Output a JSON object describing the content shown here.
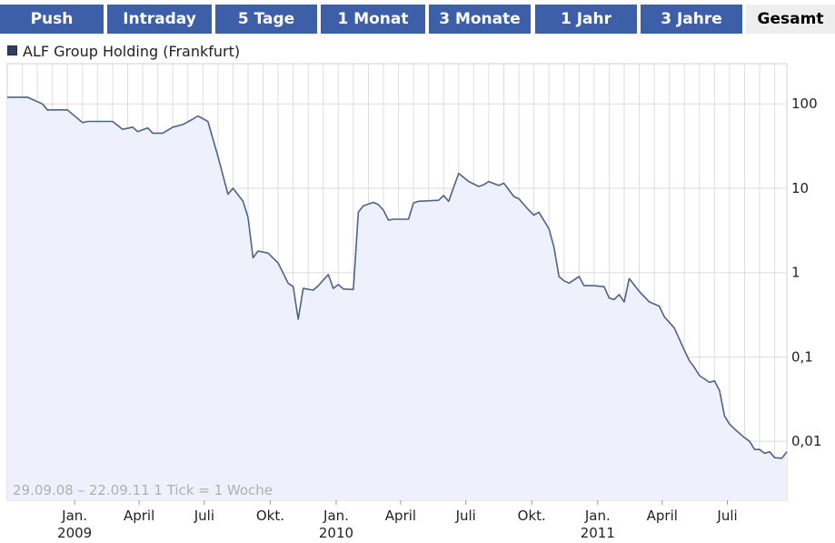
{
  "tabs": [
    {
      "label": "Push"
    },
    {
      "label": "Intraday"
    },
    {
      "label": "5 Tage"
    },
    {
      "label": "1 Monat"
    },
    {
      "label": "3 Monate"
    },
    {
      "label": "1 Jahr"
    },
    {
      "label": "3 Jahre"
    },
    {
      "label": "Gesamt",
      "active": true
    }
  ],
  "colors": {
    "tab_bg": "#3d5fa8",
    "active_tab_bg": "#eeeeee",
    "line": "#4f6289",
    "fill": "#eef1fb",
    "grid": "#dddddd"
  },
  "chart_data": {
    "type": "line",
    "title": "",
    "legend": [
      {
        "name": "ALF Group Holding (Frankfurt)",
        "color": "#2e3f60"
      }
    ],
    "period_text": "29.09.08 – 22.09.11",
    "tick_text": "1 Tick = 1 Woche",
    "y_scale": "log",
    "ylim": [
      0.002,
      300
    ],
    "y_ticks": [
      {
        "value": 100,
        "label": "100"
      },
      {
        "value": 10,
        "label": "10"
      },
      {
        "value": 1,
        "label": "1"
      },
      {
        "value": 0.1,
        "label": "0,1"
      },
      {
        "value": 0.01,
        "label": "0,01"
      }
    ],
    "xlim": [
      "2008-09-29",
      "2011-09-22"
    ],
    "x_ticks": [
      {
        "date": "2009-01-01",
        "label": "Jan.",
        "year": "2009"
      },
      {
        "date": "2009-04-01",
        "label": "April"
      },
      {
        "date": "2009-07-01",
        "label": "Juli"
      },
      {
        "date": "2009-10-01",
        "label": "Okt."
      },
      {
        "date": "2010-01-01",
        "label": "Jan.",
        "year": "2010"
      },
      {
        "date": "2010-04-01",
        "label": "April"
      },
      {
        "date": "2010-07-01",
        "label": "Juli"
      },
      {
        "date": "2010-10-01",
        "label": "Okt."
      },
      {
        "date": "2011-01-01",
        "label": "Jan.",
        "year": "2011"
      },
      {
        "date": "2011-04-01",
        "label": "April"
      },
      {
        "date": "2011-07-01",
        "label": "Juli"
      }
    ],
    "grid": true,
    "series": [
      {
        "name": "ALF Group Holding (Frankfurt)",
        "points": [
          [
            "2008-09-29",
            120
          ],
          [
            "2008-10-27",
            120
          ],
          [
            "2008-11-17",
            100
          ],
          [
            "2008-11-24",
            85
          ],
          [
            "2008-12-22",
            85
          ],
          [
            "2009-01-12",
            60
          ],
          [
            "2009-01-19",
            62
          ],
          [
            "2009-02-23",
            62
          ],
          [
            "2009-03-09",
            50
          ],
          [
            "2009-03-23",
            53
          ],
          [
            "2009-03-30",
            47
          ],
          [
            "2009-04-13",
            52
          ],
          [
            "2009-04-20",
            45
          ],
          [
            "2009-05-04",
            45
          ],
          [
            "2009-05-18",
            53
          ],
          [
            "2009-06-01",
            57
          ],
          [
            "2009-06-15",
            66
          ],
          [
            "2009-06-22",
            72
          ],
          [
            "2009-07-06",
            62
          ],
          [
            "2009-07-20",
            24
          ],
          [
            "2009-08-03",
            8.5
          ],
          [
            "2009-08-10",
            10
          ],
          [
            "2009-08-24",
            7.0
          ],
          [
            "2009-08-31",
            4.5
          ],
          [
            "2009-09-07",
            1.5
          ],
          [
            "2009-09-14",
            1.8
          ],
          [
            "2009-09-28",
            1.7
          ],
          [
            "2009-10-12",
            1.3
          ],
          [
            "2009-10-26",
            0.75
          ],
          [
            "2009-11-02",
            0.68
          ],
          [
            "2009-11-09",
            0.28
          ],
          [
            "2009-11-16",
            0.65
          ],
          [
            "2009-11-30",
            0.62
          ],
          [
            "2009-12-07",
            0.7
          ],
          [
            "2009-12-21",
            0.95
          ],
          [
            "2009-12-28",
            0.65
          ],
          [
            "2010-01-04",
            0.72
          ],
          [
            "2010-01-11",
            0.64
          ],
          [
            "2010-01-25",
            0.63
          ],
          [
            "2010-02-01",
            5.2
          ],
          [
            "2010-02-08",
            6.2
          ],
          [
            "2010-02-22",
            6.8
          ],
          [
            "2010-03-01",
            6.4
          ],
          [
            "2010-03-08",
            5.5
          ],
          [
            "2010-03-15",
            4.2
          ],
          [
            "2010-03-22",
            4.3
          ],
          [
            "2010-04-12",
            4.3
          ],
          [
            "2010-04-19",
            6.7
          ],
          [
            "2010-04-26",
            7.0
          ],
          [
            "2010-05-24",
            7.2
          ],
          [
            "2010-05-31",
            8.2
          ],
          [
            "2010-06-07",
            7.0
          ],
          [
            "2010-06-21",
            15
          ],
          [
            "2010-07-05",
            12
          ],
          [
            "2010-07-19",
            10.5
          ],
          [
            "2010-07-26",
            11
          ],
          [
            "2010-08-02",
            12
          ],
          [
            "2010-08-16",
            10.8
          ],
          [
            "2010-08-23",
            11.5
          ],
          [
            "2010-09-06",
            8.0
          ],
          [
            "2010-09-13",
            7.5
          ],
          [
            "2010-09-27",
            5.5
          ],
          [
            "2010-10-04",
            4.8
          ],
          [
            "2010-10-11",
            5.2
          ],
          [
            "2010-10-25",
            3.3
          ],
          [
            "2010-11-01",
            2.0
          ],
          [
            "2010-11-08",
            0.9
          ],
          [
            "2010-11-15",
            0.8
          ],
          [
            "2010-11-22",
            0.75
          ],
          [
            "2010-12-06",
            0.9
          ],
          [
            "2010-12-13",
            0.7
          ],
          [
            "2010-12-27",
            0.7
          ],
          [
            "2011-01-10",
            0.68
          ],
          [
            "2011-01-17",
            0.5
          ],
          [
            "2011-01-24",
            0.48
          ],
          [
            "2011-01-31",
            0.55
          ],
          [
            "2011-02-07",
            0.45
          ],
          [
            "2011-02-14",
            0.85
          ],
          [
            "2011-02-28",
            0.6
          ],
          [
            "2011-03-14",
            0.45
          ],
          [
            "2011-03-28",
            0.4
          ],
          [
            "2011-04-04",
            0.3
          ],
          [
            "2011-04-18",
            0.22
          ],
          [
            "2011-05-02",
            0.12
          ],
          [
            "2011-05-09",
            0.09
          ],
          [
            "2011-05-16",
            0.075
          ],
          [
            "2011-05-23",
            0.06
          ],
          [
            "2011-05-30",
            0.055
          ],
          [
            "2011-06-06",
            0.05
          ],
          [
            "2011-06-13",
            0.052
          ],
          [
            "2011-06-20",
            0.04
          ],
          [
            "2011-06-27",
            0.02
          ],
          [
            "2011-07-04",
            0.016
          ],
          [
            "2011-07-11",
            0.014
          ],
          [
            "2011-07-25",
            0.011
          ],
          [
            "2011-08-01",
            0.01
          ],
          [
            "2011-08-08",
            0.008
          ],
          [
            "2011-08-15",
            0.008
          ],
          [
            "2011-08-22",
            0.0072
          ],
          [
            "2011-08-29",
            0.0075
          ],
          [
            "2011-09-05",
            0.0064
          ],
          [
            "2011-09-15",
            0.0063
          ],
          [
            "2011-09-22",
            0.0075
          ]
        ]
      }
    ]
  }
}
